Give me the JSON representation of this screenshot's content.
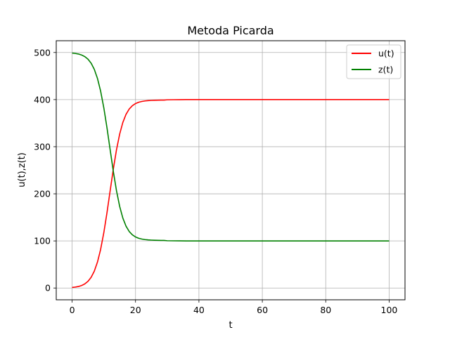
{
  "chart_data": {
    "type": "line",
    "title": "Metoda Picarda",
    "xlabel": "t",
    "ylabel": "u(t),z(t)",
    "xlim": [
      -5,
      105
    ],
    "ylim": [
      -25,
      525
    ],
    "xticks": [
      0,
      20,
      40,
      60,
      80,
      100
    ],
    "yticks": [
      0,
      100,
      200,
      300,
      400,
      500
    ],
    "grid": true,
    "legend_position": "top-right",
    "x": [
      0,
      1,
      2,
      3,
      4,
      5,
      6,
      7,
      8,
      9,
      10,
      11,
      12,
      13,
      14,
      15,
      16,
      17,
      18,
      19,
      20,
      21,
      22,
      23,
      24,
      25,
      26,
      27,
      28,
      29,
      30,
      32,
      34,
      36,
      38,
      40,
      45,
      50,
      60,
      70,
      80,
      90,
      100
    ],
    "series": [
      {
        "name": "u(t)",
        "color": "#ff0000",
        "values": [
          1.2,
          2.0,
          3.2,
          5.3,
          8.7,
          14.1,
          22.7,
          35.8,
          55.1,
          82.1,
          117.4,
          159.8,
          206.4,
          252.4,
          293.4,
          326.7,
          351.5,
          368.6,
          379.9,
          387.0,
          391.6,
          394.4,
          396.1,
          397.2,
          397.9,
          398.3,
          398.6,
          398.8,
          398.9,
          399.0,
          399.6,
          399.8,
          399.9,
          400.0,
          400.0,
          400.0,
          400.0,
          400.0,
          400.0,
          400.0,
          400.0,
          400.0,
          400.0
        ]
      },
      {
        "name": "z(t)",
        "color": "#008000",
        "values": [
          498.8,
          498.0,
          496.8,
          494.7,
          491.3,
          485.9,
          477.3,
          464.2,
          444.9,
          417.9,
          382.6,
          340.2,
          293.6,
          247.6,
          206.6,
          173.3,
          148.5,
          131.4,
          120.1,
          113.0,
          108.4,
          105.6,
          103.9,
          102.8,
          102.1,
          101.7,
          101.4,
          101.2,
          101.1,
          101.0,
          100.4,
          100.2,
          100.1,
          100.0,
          100.0,
          100.0,
          100.0,
          100.0,
          100.0,
          100.0,
          100.0,
          100.0,
          100.0
        ]
      }
    ]
  }
}
